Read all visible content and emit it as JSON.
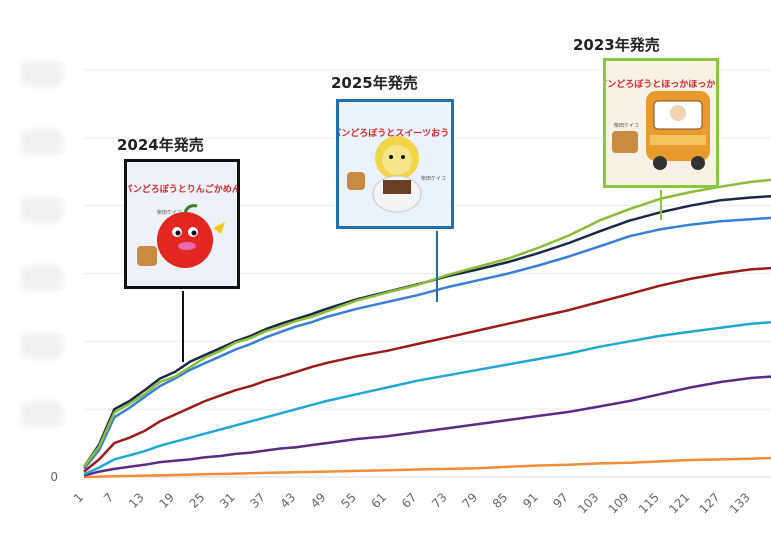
{
  "chart_data": {
    "type": "line",
    "title": "",
    "xlabel": "",
    "ylabel": "",
    "x_ticks": [
      "1",
      "7",
      "13",
      "19",
      "25",
      "31",
      "37",
      "43",
      "49",
      "55",
      "61",
      "67",
      "73",
      "79",
      "85",
      "91",
      "97",
      "103",
      "109",
      "115",
      "121",
      "127",
      "133"
    ],
    "xlim": [
      1,
      137
    ],
    "ylim": [
      0,
      600
    ],
    "y_ticks_visible": [
      "0"
    ],
    "y_ticks_hidden": [
      100,
      200,
      300,
      400,
      500,
      600
    ],
    "grid": true,
    "legend": "none",
    "series": [
      {
        "color": "#8cbd3a",
        "x": [
          1,
          4,
          7,
          10,
          13,
          16,
          19,
          22,
          25,
          28,
          31,
          34,
          37,
          40,
          43,
          46,
          49,
          55,
          61,
          67,
          73,
          79,
          85,
          91,
          97,
          103,
          109,
          115,
          121,
          127,
          133,
          137
        ],
        "y": [
          15,
          45,
          95,
          108,
          122,
          140,
          148,
          162,
          176,
          186,
          198,
          205,
          215,
          222,
          230,
          236,
          244,
          260,
          272,
          283,
          298,
          310,
          322,
          338,
          356,
          378,
          395,
          410,
          420,
          428,
          435,
          438
        ]
      },
      {
        "color": "#1b2a44",
        "x": [
          1,
          4,
          7,
          10,
          13,
          16,
          19,
          22,
          25,
          28,
          31,
          34,
          37,
          40,
          43,
          46,
          49,
          55,
          61,
          67,
          73,
          79,
          85,
          91,
          97,
          103,
          109,
          115,
          121,
          127,
          133,
          137
        ],
        "y": [
          15,
          48,
          100,
          112,
          128,
          145,
          155,
          170,
          180,
          190,
          200,
          208,
          218,
          226,
          233,
          240,
          248,
          262,
          273,
          284,
          296,
          306,
          317,
          330,
          345,
          362,
          378,
          390,
          400,
          408,
          412,
          414
        ]
      },
      {
        "color": "#3a7fd5",
        "x": [
          1,
          4,
          7,
          10,
          13,
          16,
          19,
          22,
          25,
          28,
          31,
          34,
          37,
          40,
          43,
          46,
          49,
          55,
          61,
          67,
          73,
          79,
          85,
          91,
          97,
          103,
          109,
          115,
          121,
          127,
          133,
          137
        ],
        "y": [
          12,
          40,
          88,
          102,
          118,
          134,
          145,
          158,
          168,
          178,
          188,
          196,
          206,
          214,
          222,
          228,
          236,
          248,
          258,
          268,
          280,
          290,
          300,
          312,
          325,
          340,
          355,
          365,
          372,
          377,
          380,
          382
        ]
      },
      {
        "color": "#9a1c1c",
        "x": [
          1,
          4,
          7,
          10,
          13,
          16,
          19,
          22,
          25,
          28,
          31,
          34,
          37,
          40,
          43,
          46,
          49,
          55,
          61,
          67,
          73,
          79,
          85,
          91,
          97,
          103,
          109,
          115,
          121,
          127,
          133,
          137
        ],
        "y": [
          8,
          26,
          50,
          58,
          68,
          82,
          92,
          102,
          112,
          120,
          128,
          134,
          142,
          148,
          155,
          162,
          168,
          178,
          186,
          196,
          206,
          216,
          226,
          236,
          246,
          258,
          270,
          282,
          292,
          300,
          306,
          308
        ]
      },
      {
        "color": "#22a7d0",
        "x": [
          1,
          4,
          7,
          10,
          13,
          16,
          19,
          22,
          25,
          28,
          31,
          34,
          37,
          40,
          43,
          46,
          49,
          55,
          61,
          67,
          73,
          79,
          85,
          91,
          97,
          103,
          109,
          115,
          121,
          127,
          133,
          137
        ],
        "y": [
          4,
          14,
          26,
          32,
          38,
          46,
          52,
          58,
          64,
          70,
          76,
          82,
          88,
          94,
          100,
          106,
          112,
          122,
          132,
          142,
          150,
          158,
          166,
          174,
          182,
          192,
          200,
          208,
          214,
          220,
          226,
          228
        ]
      },
      {
        "color": "#5a2d82",
        "x": [
          1,
          4,
          7,
          10,
          13,
          16,
          19,
          22,
          25,
          28,
          31,
          34,
          37,
          40,
          43,
          46,
          49,
          55,
          61,
          67,
          73,
          79,
          85,
          91,
          97,
          103,
          109,
          115,
          121,
          127,
          133,
          137
        ],
        "y": [
          2,
          8,
          12,
          15,
          18,
          22,
          24,
          26,
          29,
          31,
          34,
          36,
          39,
          42,
          44,
          47,
          50,
          56,
          60,
          66,
          72,
          78,
          84,
          90,
          96,
          104,
          112,
          122,
          132,
          140,
          146,
          148
        ]
      },
      {
        "color": "#f08c3a",
        "x": [
          1,
          7,
          13,
          19,
          25,
          31,
          37,
          43,
          49,
          55,
          61,
          67,
          73,
          79,
          85,
          91,
          97,
          103,
          109,
          115,
          121,
          127,
          133,
          137
        ],
        "y": [
          0,
          1,
          2,
          3,
          4,
          5,
          6,
          7,
          8,
          9,
          10,
          11,
          12,
          13,
          15,
          17,
          18,
          20,
          21,
          23,
          25,
          26,
          27,
          28
        ]
      }
    ]
  },
  "callouts": [
    {
      "label": "2024年発売",
      "frame_color": "#111111",
      "book_title": "パンどろぼうとりんごかめん",
      "author": "柴田ケイコ",
      "bg": "#e8eef6",
      "art": "apple"
    },
    {
      "label": "2025年発売",
      "frame_color": "#1f6fb2",
      "book_title": "パンどろぼうとスイーツおうじ",
      "author": "柴田ケイコ",
      "bg": "#e6f0fa",
      "art": "lion"
    },
    {
      "label": "2023年発売",
      "frame_color": "#8cc63f",
      "book_title": "パンどろぼうとほっかほっかー",
      "author": "柴田ケイコ",
      "bg": "#f5efe4",
      "art": "bus"
    }
  ]
}
